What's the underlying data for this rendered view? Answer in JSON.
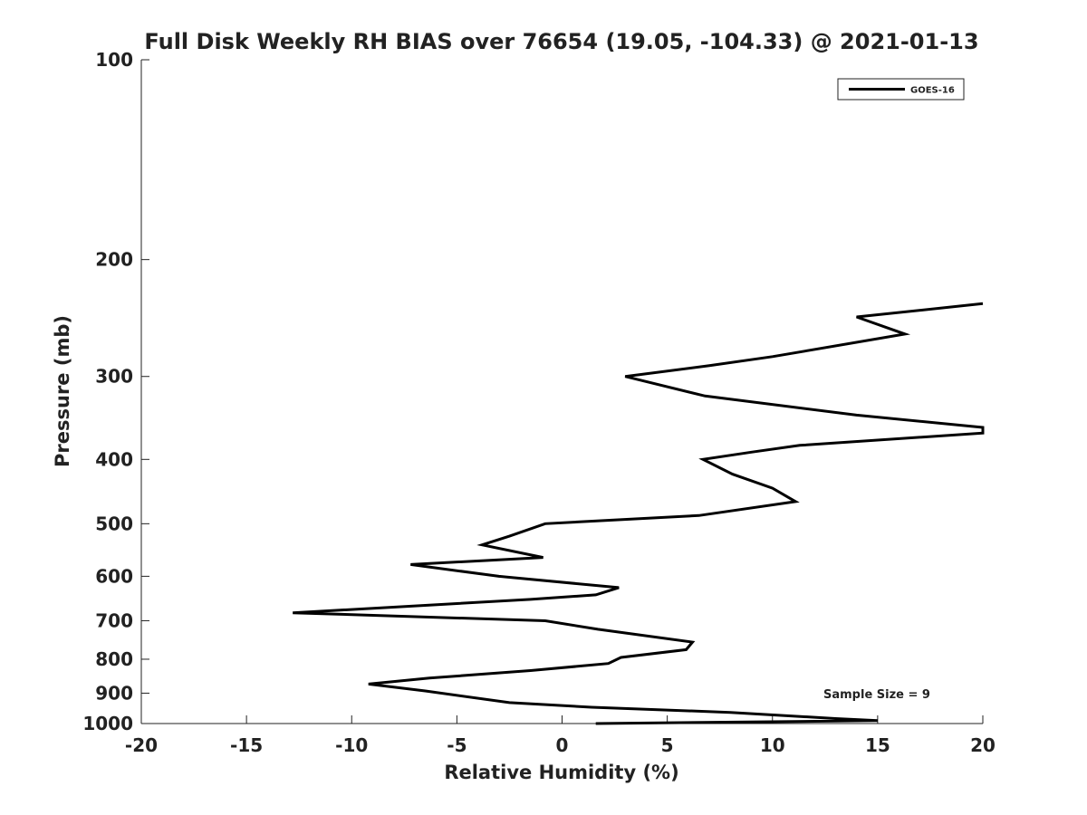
{
  "chart_data": {
    "type": "line",
    "title": "Full Disk Weekly RH BIAS over 76654 (19.05, -104.33) @ 2021-01-13",
    "xlabel": "Relative Humidity (%)",
    "ylabel": "Pressure (mb)",
    "xlim": [
      -20,
      20
    ],
    "ylim": [
      1000,
      100
    ],
    "y_scale": "log",
    "y_reversed": true,
    "x_ticks": [
      "-20",
      "-15",
      "-10",
      "-5",
      "0",
      "5",
      "10",
      "15",
      "20"
    ],
    "y_ticks": [
      "100",
      "200",
      "300",
      "400",
      "500",
      "600",
      "700",
      "800",
      "900",
      "1000"
    ],
    "grid": false,
    "legend_position": "top-right",
    "annotation": "Sample Size = 9",
    "series": [
      {
        "name": "GOES-16",
        "color": "#000000",
        "points": [
          {
            "x": 1.6,
            "p": 1000
          },
          {
            "x": 15.0,
            "p": 990
          },
          {
            "x": 13.0,
            "p": 983
          },
          {
            "x": 8.0,
            "p": 962
          },
          {
            "x": 1.4,
            "p": 945
          },
          {
            "x": -2.5,
            "p": 930
          },
          {
            "x": -6.5,
            "p": 893
          },
          {
            "x": -9.2,
            "p": 872
          },
          {
            "x": -6.3,
            "p": 854
          },
          {
            "x": -1.5,
            "p": 832
          },
          {
            "x": 2.2,
            "p": 812
          },
          {
            "x": 2.8,
            "p": 795
          },
          {
            "x": 5.9,
            "p": 774
          },
          {
            "x": 6.2,
            "p": 754
          },
          {
            "x": 1.7,
            "p": 721
          },
          {
            "x": -0.8,
            "p": 700
          },
          {
            "x": -12.8,
            "p": 681
          },
          {
            "x": -1.5,
            "p": 650
          },
          {
            "x": 1.6,
            "p": 640
          },
          {
            "x": 2.7,
            "p": 624
          },
          {
            "x": -3.0,
            "p": 600
          },
          {
            "x": -7.2,
            "p": 576
          },
          {
            "x": -0.9,
            "p": 562
          },
          {
            "x": -3.8,
            "p": 538
          },
          {
            "x": -2.5,
            "p": 522
          },
          {
            "x": -0.8,
            "p": 500
          },
          {
            "x": 6.5,
            "p": 486
          },
          {
            "x": 11.1,
            "p": 463
          },
          {
            "x": 10.0,
            "p": 442
          },
          {
            "x": 8.1,
            "p": 421
          },
          {
            "x": 6.7,
            "p": 400
          },
          {
            "x": 9.0,
            "p": 390
          },
          {
            "x": 11.3,
            "p": 381
          },
          {
            "x": 20.0,
            "p": 365
          },
          {
            "x": 20.0,
            "p": 358
          },
          {
            "x": 14.0,
            "p": 343
          },
          {
            "x": 6.8,
            "p": 321
          },
          {
            "x": 3.0,
            "p": 300
          },
          {
            "x": 7.0,
            "p": 289
          },
          {
            "x": 10.0,
            "p": 280
          },
          {
            "x": 16.3,
            "p": 259
          },
          {
            "x": 14.0,
            "p": 244
          },
          {
            "x": 20.0,
            "p": 233
          }
        ]
      }
    ]
  }
}
